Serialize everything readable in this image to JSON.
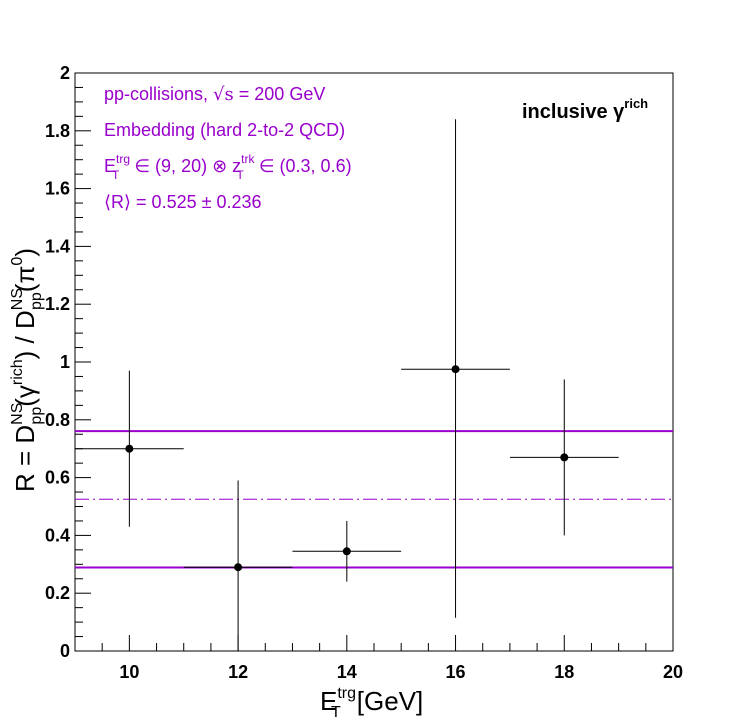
{
  "chart_data": {
    "type": "scatter",
    "xlabel": {
      "main": "E",
      "sup": "trg",
      "sub": "T",
      "unit": "[GeV]"
    },
    "ylabel": {
      "prefix": "R = D",
      "sup1": "NS",
      "sub1": "pp",
      "mid1": "(γ",
      "sup2": "rich",
      "mid2": ") / D",
      "sup3": "NS",
      "sub3": "pp",
      "mid3": "(π",
      "sup4": "0",
      "end": ")"
    },
    "xlim": [
      9,
      20
    ],
    "ylim": [
      0,
      2
    ],
    "x_ticks": [
      "10",
      "12",
      "14",
      "16",
      "18",
      "20"
    ],
    "x_tick_values": [
      10,
      12,
      14,
      16,
      18,
      20
    ],
    "y_ticks": [
      "0",
      "0.2",
      "0.4",
      "0.6",
      "0.8",
      "1",
      "1.2",
      "1.4",
      "1.6",
      "1.8",
      "2"
    ],
    "y_tick_values": [
      0,
      0.2,
      0.4,
      0.6,
      0.8,
      1,
      1.2,
      1.4,
      1.6,
      1.8,
      2
    ],
    "points": [
      {
        "x": 10,
        "y": 0.7,
        "xerr": 1,
        "yerr_low": 0.27,
        "yerr_high": 0.27
      },
      {
        "x": 12,
        "y": 0.29,
        "xerr": 1,
        "yerr_low": 0.29,
        "yerr_high": 0.3
      },
      {
        "x": 14,
        "y": 0.345,
        "xerr": 1,
        "yerr_low": 0.105,
        "yerr_high": 0.105
      },
      {
        "x": 16,
        "y": 0.975,
        "xerr": 1,
        "yerr_low": 0.86,
        "yerr_high": 0.865
      },
      {
        "x": 18,
        "y": 0.67,
        "xerr": 1,
        "yerr_low": 0.27,
        "yerr_high": 0.27
      }
    ],
    "mean_line": 0.525,
    "band_upper": 0.761,
    "band_lower": 0.289,
    "colors": {
      "band": "#9900cc",
      "points": "#000000"
    },
    "grid": false,
    "corner_label": {
      "text": "inclusive γ",
      "sup": "rich"
    },
    "annotations": {
      "line1_a": "pp-collisions, ",
      "line1_b": "√s",
      "line1_c": " = 200 GeV",
      "line2": "Embedding (hard 2-to-2 QCD)",
      "line3_e": "E",
      "line3_sup1": "trg",
      "line3_sub1": "T",
      "line3_mid": " ∈ (9, 20) ⊗ z",
      "line3_sup2": "trk",
      "line3_sub2": "T",
      "line3_end": " ∈ (0.3, 0.6)",
      "line4": "⟨R⟩ = 0.525 ± 0.236"
    }
  }
}
